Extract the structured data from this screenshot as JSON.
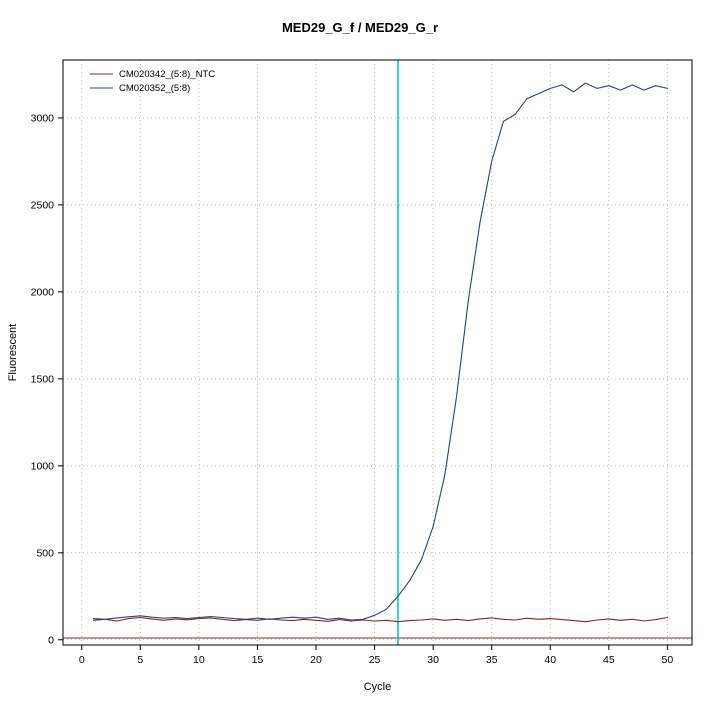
{
  "chart_data": {
    "type": "line",
    "title": "MED29_G_f / MED29_G_r",
    "xlabel": "Cycle",
    "ylabel": "Fluorescent",
    "xticks": [
      0,
      5,
      10,
      15,
      20,
      25,
      30,
      35,
      40,
      45,
      50
    ],
    "yticks": [
      0,
      500,
      1000,
      1500,
      2000,
      2500,
      3000
    ],
    "xlim": [
      -1.6,
      52.1
    ],
    "ylim": [
      -30,
      3333
    ],
    "grid": "dotted",
    "grid_color": "#b8b8b8",
    "legend_position": "top-left",
    "vertical_marker": {
      "x": 27,
      "color": "#00CCCC"
    },
    "threshold_line": {
      "y": 10,
      "color": "#8B2323"
    },
    "x": [
      1,
      2,
      3,
      4,
      5,
      6,
      7,
      8,
      9,
      10,
      11,
      12,
      13,
      14,
      15,
      16,
      17,
      18,
      19,
      20,
      21,
      22,
      23,
      24,
      25,
      26,
      27,
      28,
      29,
      30,
      31,
      32,
      33,
      34,
      35,
      36,
      37,
      38,
      39,
      40,
      41,
      42,
      43,
      44,
      45,
      46,
      47,
      48,
      49,
      50
    ],
    "series": [
      {
        "name": "CM020342_(5:8)_NTC",
        "color": "#8B2323",
        "values": [
          112,
          118,
          108,
          122,
          128,
          120,
          112,
          120,
          115,
          122,
          126,
          118,
          110,
          116,
          112,
          120,
          114,
          110,
          118,
          112,
          106,
          116,
          108,
          114,
          108,
          112,
          104,
          110,
          114,
          120,
          112,
          118,
          110,
          120,
          126,
          118,
          114,
          124,
          118,
          122,
          116,
          110,
          104,
          114,
          120,
          112,
          118,
          108,
          116,
          128
        ]
      },
      {
        "name": "CM020352_(5:8)",
        "color": "#27408B",
        "values": [
          122,
          118,
          126,
          132,
          138,
          130,
          124,
          128,
          122,
          128,
          134,
          128,
          122,
          118,
          124,
          118,
          124,
          130,
          124,
          130,
          118,
          124,
          114,
          118,
          140,
          175,
          250,
          340,
          460,
          650,
          950,
          1400,
          1950,
          2400,
          2750,
          2980,
          3020,
          3110,
          3140,
          3170,
          3190,
          3150,
          3200,
          3170,
          3185,
          3160,
          3190,
          3160,
          3185,
          3170
        ]
      }
    ]
  }
}
